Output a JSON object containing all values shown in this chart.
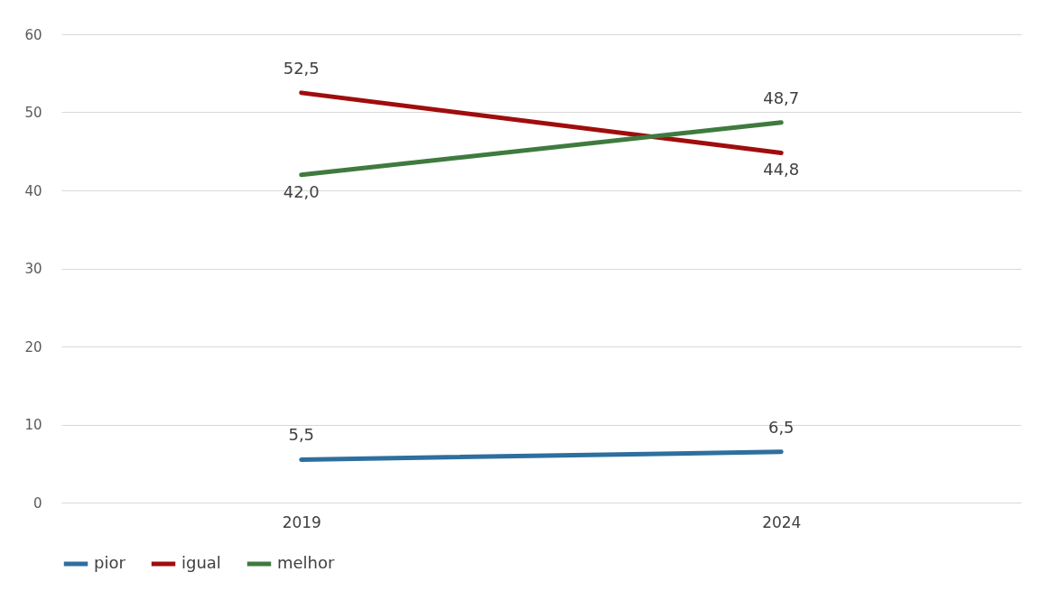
{
  "chart_data": {
    "type": "line",
    "categories": [
      "2019",
      "2024"
    ],
    "series": [
      {
        "name": "pior",
        "color": "#2e6f9e",
        "values": [
          5.5,
          6.5
        ],
        "value_labels": [
          "5,5",
          "6,5"
        ]
      },
      {
        "name": "igual",
        "color": "#a00d0d",
        "values": [
          52.5,
          44.8
        ],
        "value_labels": [
          "52,5",
          "44,8"
        ]
      },
      {
        "name": "melhor",
        "color": "#3f7a3f",
        "values": [
          42.0,
          48.7
        ],
        "value_labels": [
          "42,0",
          "48,7"
        ]
      }
    ],
    "ylim": [
      0,
      60
    ],
    "yticks": [
      0,
      10,
      20,
      30,
      40,
      50,
      60
    ],
    "grid": "y",
    "legend": "bottom",
    "marker": "none",
    "line_style": "solid"
  }
}
